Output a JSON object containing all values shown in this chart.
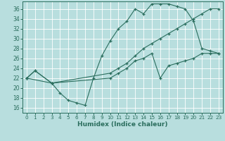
{
  "xlabel": "Humidex (Indice chaleur)",
  "bg_color": "#b8dede",
  "grid_color": "#ffffff",
  "line_color": "#2b6e5e",
  "xlim": [
    -0.5,
    23.5
  ],
  "ylim": [
    15,
    37.5
  ],
  "xticks": [
    0,
    1,
    2,
    3,
    4,
    5,
    6,
    7,
    8,
    9,
    10,
    11,
    12,
    13,
    14,
    15,
    16,
    17,
    18,
    19,
    20,
    21,
    22,
    23
  ],
  "yticks": [
    16,
    18,
    20,
    22,
    24,
    26,
    28,
    30,
    32,
    34,
    36
  ],
  "line1_x": [
    0,
    1,
    3,
    4,
    5,
    6,
    7,
    8,
    9,
    10,
    11,
    12,
    13,
    14,
    15,
    16,
    17,
    18,
    19,
    20,
    21,
    22,
    23
  ],
  "line1_y": [
    22,
    23.5,
    21,
    19,
    17.5,
    17,
    16.5,
    22,
    26.5,
    29.5,
    32,
    33.5,
    36,
    35,
    37,
    37,
    37,
    36.5,
    36,
    33.5,
    28,
    27.5,
    27
  ],
  "line2_x": [
    0,
    1,
    3,
    10,
    11,
    12,
    13,
    14,
    15,
    16,
    17,
    18,
    19,
    20,
    21,
    22,
    23
  ],
  "line2_y": [
    22,
    23.5,
    21,
    23,
    24,
    25,
    26.5,
    28,
    29,
    30,
    31,
    32,
    33,
    34,
    35,
    36,
    36
  ],
  "line3_x": [
    0,
    3,
    10,
    11,
    12,
    13,
    14,
    15,
    16,
    17,
    18,
    19,
    20,
    21,
    22,
    23
  ],
  "line3_y": [
    22,
    21,
    22,
    23,
    24,
    25.5,
    26,
    27,
    22,
    24.5,
    25,
    25.5,
    26,
    27,
    27,
    27
  ]
}
